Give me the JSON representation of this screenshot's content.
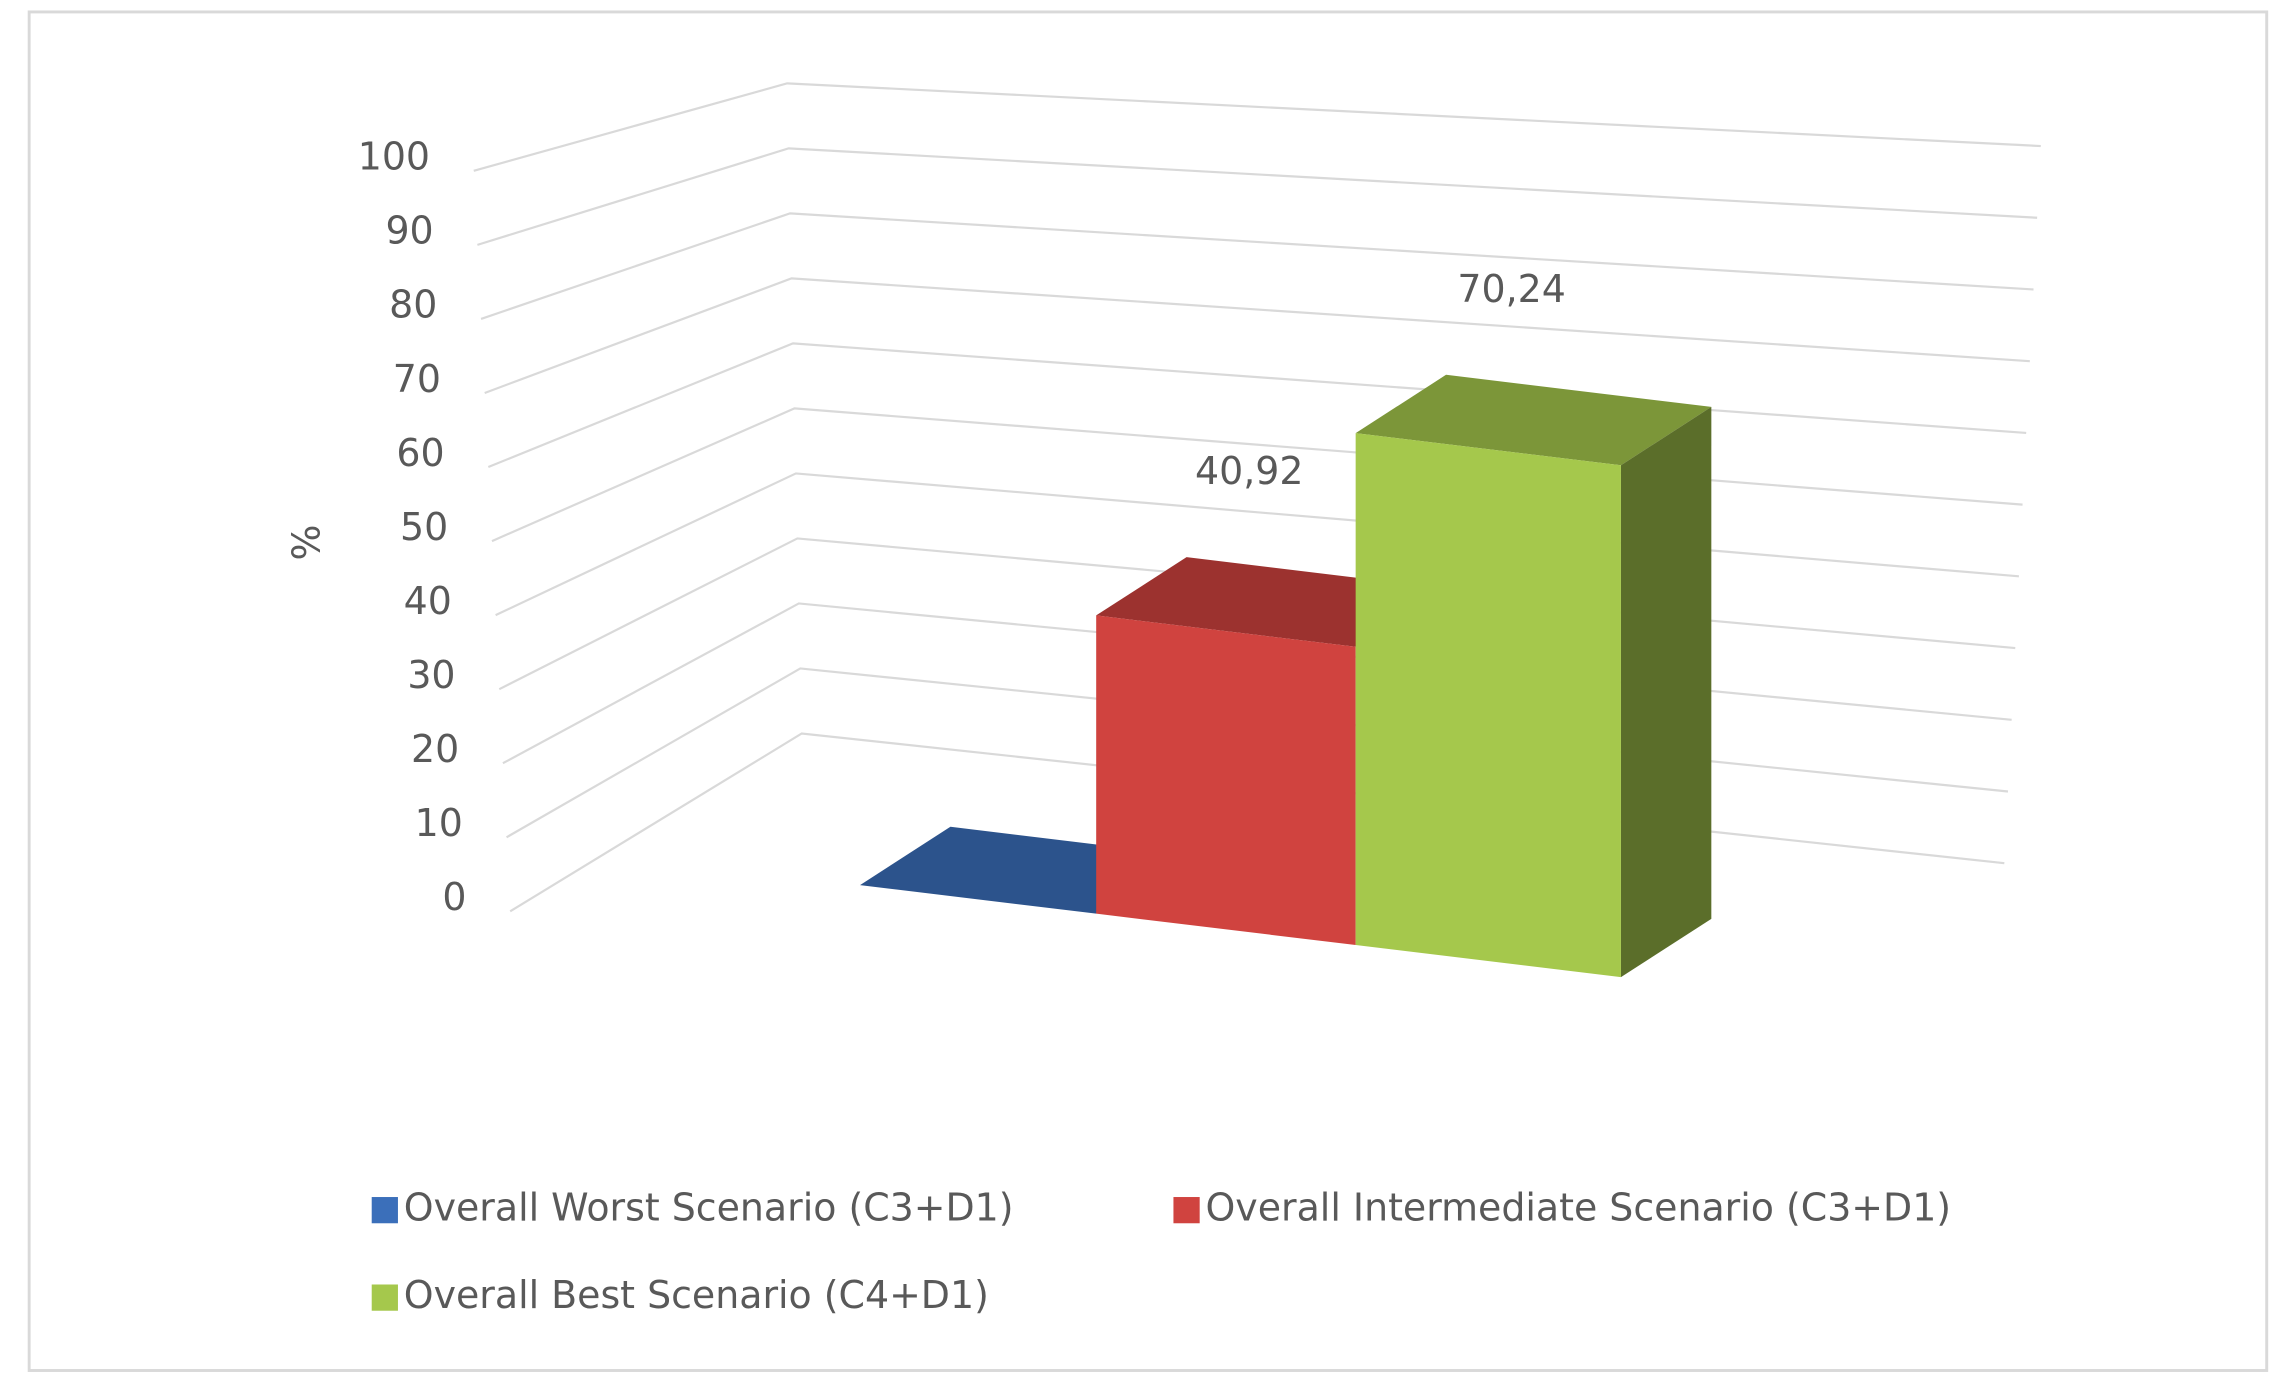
{
  "chart_data": {
    "type": "bar3d",
    "ylabel": "%",
    "ylim": [
      0,
      100
    ],
    "yticks": [
      0,
      10,
      20,
      30,
      40,
      50,
      60,
      70,
      80,
      90,
      100
    ],
    "grid": true,
    "legend": "bottom",
    "series": [
      {
        "name": "Overall Worst Scenario (C3+D1)",
        "color": "#3b6fba",
        "values": [
          0
        ]
      },
      {
        "name": "Overall Intermediate Scenario (C3+D1)",
        "color": "#d0433f",
        "values": [
          40.92
        ],
        "value_labels": [
          "40,92"
        ]
      },
      {
        "name": "Overall Best Scenario (C4+D1)",
        "color": "#a5c84c",
        "values": [
          70.24
        ],
        "value_labels": [
          "70,24"
        ]
      }
    ]
  }
}
